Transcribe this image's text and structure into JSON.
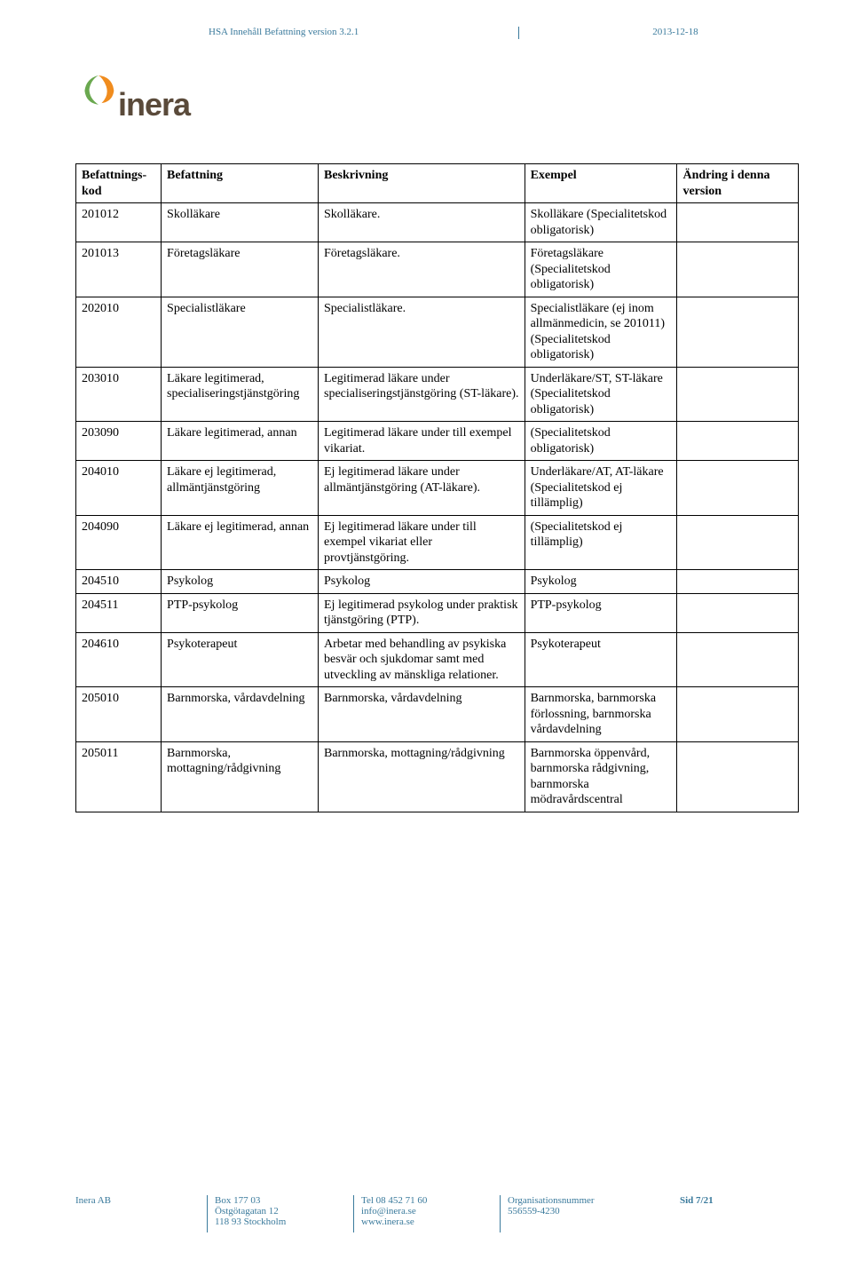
{
  "header": {
    "title": "HSA Innehåll Befattning version 3.2.1",
    "date": "2013-12-18"
  },
  "logo": {
    "text": "inera",
    "color_primary": "#f08c1e",
    "color_secondary": "#6aa84f",
    "text_color": "#5a4a3a"
  },
  "table": {
    "headers": {
      "kod": "Befattnings-kod",
      "befattning": "Befattning",
      "beskrivning": "Beskrivning",
      "exempel": "Exempel",
      "andring": "Ändring i denna version"
    },
    "rows": [
      {
        "kod": "201012",
        "bef": "Skolläkare",
        "besk": "Skolläkare.",
        "ex": "Skolläkare (Specialitetskod obligatorisk)",
        "andr": ""
      },
      {
        "kod": "201013",
        "bef": "Företagsläkare",
        "besk": "Företagsläkare.",
        "ex": "Företagsläkare (Specialitetskod obligatorisk)",
        "andr": ""
      },
      {
        "kod": "202010",
        "bef": "Specialistläkare",
        "besk": "Specialistläkare.",
        "ex": "Specialistläkare (ej inom allmänmedicin, se 201011) (Specialitetskod obligatorisk)",
        "andr": ""
      },
      {
        "kod": "203010",
        "bef": "Läkare legitimerad, specialiseringstjänstgöring",
        "besk": "Legitimerad läkare under specialiseringstjänstgöring (ST-läkare).",
        "ex": "Underläkare/ST, ST-läkare (Specialitetskod obligatorisk)",
        "andr": ""
      },
      {
        "kod": "203090",
        "bef": "Läkare legitimerad, annan",
        "besk": "Legitimerad läkare under till exempel vikariat.",
        "ex": "(Specialitetskod obligatorisk)",
        "andr": ""
      },
      {
        "kod": "204010",
        "bef": "Läkare ej legitimerad, allmäntjänstgöring",
        "besk": "Ej legitimerad läkare under allmäntjänstgöring (AT-läkare).",
        "ex": "Underläkare/AT, AT-läkare (Specialitetskod ej tillämplig)",
        "andr": ""
      },
      {
        "kod": "204090",
        "bef": "Läkare ej legitimerad, annan",
        "besk": "Ej legitimerad läkare under till exempel vikariat eller provtjänstgöring.",
        "ex": "(Specialitetskod ej tillämplig)",
        "andr": ""
      },
      {
        "kod": "204510",
        "bef": "Psykolog",
        "besk": "Psykolog",
        "ex": "Psykolog",
        "andr": ""
      },
      {
        "kod": "204511",
        "bef": "PTP-psykolog",
        "besk": "Ej legitimerad psykolog under praktisk tjänstgöring (PTP).",
        "ex": "PTP-psykolog",
        "andr": ""
      },
      {
        "kod": "204610",
        "bef": "Psykoterapeut",
        "besk": "Arbetar med behandling av psykiska besvär och sjukdomar samt med utveckling av mänskliga relationer.",
        "ex": "Psykoterapeut",
        "andr": ""
      },
      {
        "kod": "205010",
        "bef": "Barnmorska, vårdavdelning",
        "besk": "Barnmorska, vårdavdelning",
        "ex": "Barnmorska, barnmorska förlossning, barnmorska vårdavdelning",
        "andr": ""
      },
      {
        "kod": "205011",
        "bef": "Barnmorska, mottagning/rådgivning",
        "besk": "Barnmorska, mottagning/rådgivning",
        "ex": "Barnmorska öppenvård, barnmorska rådgivning, barnmorska mödravårdscentral",
        "andr": ""
      }
    ]
  },
  "footer": {
    "company": "Inera AB",
    "address": [
      "Box 177 03",
      "Östgötagatan 12",
      "118 93 Stockholm"
    ],
    "contact": [
      "Tel 08 452 71 60",
      "info@inera.se",
      "www.inera.se"
    ],
    "org": [
      "Organisationsnummer",
      "556559-4230"
    ],
    "page": "Sid 7/21"
  },
  "style": {
    "header_color": "#3a7a9c",
    "border_color": "#000000",
    "font_body": "Times New Roman",
    "font_size_body": 14,
    "font_size_header": 11,
    "font_size_footer": 11
  }
}
